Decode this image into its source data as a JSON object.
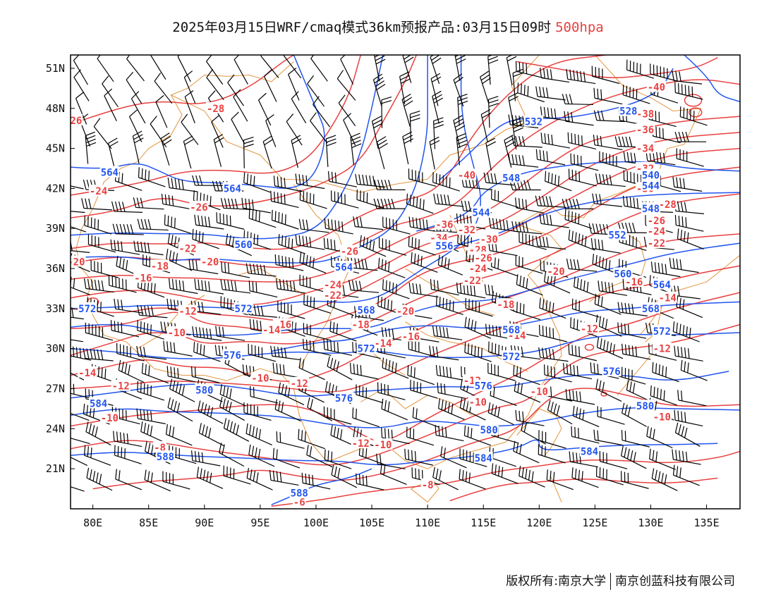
{
  "title": {
    "main": "2025年03月15日WRF/cmaq模式36km预报产品:03月15日09时",
    "level": "500hpa"
  },
  "axes": {
    "lon_ticks": [
      "80E",
      "85E",
      "90E",
      "95E",
      "100E",
      "105E",
      "110E",
      "115E",
      "120E",
      "125E",
      "130E",
      "135E"
    ],
    "lat_ticks": [
      "51N",
      "48N",
      "45N",
      "42N",
      "39N",
      "36N",
      "33N",
      "30N",
      "27N",
      "24N",
      "21N"
    ],
    "lon_range": [
      78,
      138
    ],
    "lat_range": [
      18,
      52
    ]
  },
  "colors": {
    "height_contours": "#2255ee",
    "temperature_contours": "#e84040",
    "borders": "#e08a2a",
    "wind_barbs": "#000000"
  },
  "height_labels": [
    {
      "text": "564",
      "lon": 81.5,
      "lat": 43.2
    },
    {
      "text": "564",
      "lon": 92.5,
      "lat": 42.0
    },
    {
      "text": "560",
      "lon": 93.5,
      "lat": 37.8
    },
    {
      "text": "564",
      "lon": 102.5,
      "lat": 36.1
    },
    {
      "text": "528",
      "lon": 128.0,
      "lat": 47.8
    },
    {
      "text": "532",
      "lon": 119.5,
      "lat": 47.0
    },
    {
      "text": "548",
      "lon": 117.5,
      "lat": 42.8
    },
    {
      "text": "544",
      "lon": 114.8,
      "lat": 40.2
    },
    {
      "text": "556",
      "lon": 111.5,
      "lat": 37.7
    },
    {
      "text": "552",
      "lon": 127.0,
      "lat": 38.5
    },
    {
      "text": "560",
      "lon": 127.5,
      "lat": 35.6
    },
    {
      "text": "564",
      "lon": 131.0,
      "lat": 34.8
    },
    {
      "text": "568",
      "lon": 130.0,
      "lat": 33.0
    },
    {
      "text": "568",
      "lon": 104.5,
      "lat": 32.9
    },
    {
      "text": "572",
      "lon": 79.5,
      "lat": 33.0
    },
    {
      "text": "572",
      "lon": 93.5,
      "lat": 33.0
    },
    {
      "text": "572",
      "lon": 104.5,
      "lat": 30.0
    },
    {
      "text": "572",
      "lon": 117.5,
      "lat": 29.4
    },
    {
      "text": "572",
      "lon": 131.0,
      "lat": 31.3
    },
    {
      "text": "568",
      "lon": 117.5,
      "lat": 31.4
    },
    {
      "text": "576",
      "lon": 92.5,
      "lat": 29.5
    },
    {
      "text": "576",
      "lon": 102.5,
      "lat": 26.3
    },
    {
      "text": "576",
      "lon": 115.0,
      "lat": 27.2
    },
    {
      "text": "576",
      "lon": 126.5,
      "lat": 28.3
    },
    {
      "text": "580",
      "lon": 90.0,
      "lat": 26.9
    },
    {
      "text": "580",
      "lon": 129.5,
      "lat": 25.7
    },
    {
      "text": "580",
      "lon": 115.5,
      "lat": 23.9
    },
    {
      "text": "584",
      "lon": 80.5,
      "lat": 25.9
    },
    {
      "text": "584",
      "lon": 115.0,
      "lat": 21.8
    },
    {
      "text": "584",
      "lon": 124.5,
      "lat": 22.3
    },
    {
      "text": "588",
      "lon": 86.5,
      "lat": 21.9
    },
    {
      "text": "588",
      "lon": 98.5,
      "lat": 19.2
    },
    {
      "text": "540",
      "lon": 130.0,
      "lat": 43.0
    },
    {
      "text": "544",
      "lon": 130.0,
      "lat": 42.2
    },
    {
      "text": "548",
      "lon": 130.0,
      "lat": 40.5
    }
  ],
  "temperature_labels": [
    {
      "text": "26",
      "lon": 78.5,
      "lat": 47.1
    },
    {
      "text": "-28",
      "lon": 91.0,
      "lat": 48.0
    },
    {
      "text": "-24",
      "lon": 80.5,
      "lat": 41.8
    },
    {
      "text": "-26",
      "lon": 89.5,
      "lat": 40.6
    },
    {
      "text": "-22",
      "lon": 88.5,
      "lat": 37.5
    },
    {
      "text": "-20",
      "lon": 78.5,
      "lat": 36.5
    },
    {
      "text": "-20",
      "lon": 90.5,
      "lat": 36.5
    },
    {
      "text": "-18",
      "lon": 86.0,
      "lat": 36.2
    },
    {
      "text": "-16",
      "lon": 84.5,
      "lat": 35.3
    },
    {
      "text": "-40",
      "lon": 130.5,
      "lat": 49.6
    },
    {
      "text": "-38",
      "lon": 129.5,
      "lat": 47.6
    },
    {
      "text": "-36",
      "lon": 129.5,
      "lat": 46.4
    },
    {
      "text": "-34",
      "lon": 129.5,
      "lat": 45.0
    },
    {
      "text": "-40",
      "lon": 113.5,
      "lat": 43.0
    },
    {
      "text": "-32",
      "lon": 129.5,
      "lat": 43.5
    },
    {
      "text": "-30",
      "lon": 129.5,
      "lat": 42.0
    },
    {
      "text": "-28",
      "lon": 131.5,
      "lat": 40.8
    },
    {
      "text": "-26",
      "lon": 130.5,
      "lat": 39.6
    },
    {
      "text": "-24",
      "lon": 130.5,
      "lat": 38.8
    },
    {
      "text": "-22",
      "lon": 130.5,
      "lat": 37.9
    },
    {
      "text": "-36",
      "lon": 111.5,
      "lat": 39.3
    },
    {
      "text": "-32",
      "lon": 113.5,
      "lat": 38.9
    },
    {
      "text": "-34",
      "lon": 111.0,
      "lat": 38.3
    },
    {
      "text": "-30",
      "lon": 115.5,
      "lat": 38.2
    },
    {
      "text": "-28",
      "lon": 114.5,
      "lat": 37.4
    },
    {
      "text": "-26",
      "lon": 115.0,
      "lat": 36.8
    },
    {
      "text": "-24",
      "lon": 114.5,
      "lat": 36.0
    },
    {
      "text": "-22",
      "lon": 114.0,
      "lat": 35.1
    },
    {
      "text": "-20",
      "lon": 121.5,
      "lat": 35.8
    },
    {
      "text": "-16",
      "lon": 128.5,
      "lat": 35.0
    },
    {
      "text": "-14",
      "lon": 131.5,
      "lat": 33.8
    },
    {
      "text": "-26",
      "lon": 103.0,
      "lat": 37.3
    },
    {
      "text": "-24",
      "lon": 101.5,
      "lat": 34.8
    },
    {
      "text": "-22",
      "lon": 101.5,
      "lat": 34.0
    },
    {
      "text": "-20",
      "lon": 108.0,
      "lat": 32.8
    },
    {
      "text": "-18",
      "lon": 117.0,
      "lat": 33.3
    },
    {
      "text": "-18",
      "lon": 104.0,
      "lat": 31.8
    },
    {
      "text": "-16",
      "lon": 97.0,
      "lat": 31.8
    },
    {
      "text": "-16",
      "lon": 108.5,
      "lat": 30.9
    },
    {
      "text": "-14",
      "lon": 96.0,
      "lat": 31.4
    },
    {
      "text": "-14",
      "lon": 106.0,
      "lat": 30.4
    },
    {
      "text": "-14",
      "lon": 118.0,
      "lat": 31.0
    },
    {
      "text": "-12",
      "lon": 88.5,
      "lat": 32.8
    },
    {
      "text": "-12",
      "lon": 124.5,
      "lat": 31.5
    },
    {
      "text": "-12",
      "lon": 131.0,
      "lat": 30.0
    },
    {
      "text": "-10",
      "lon": 87.5,
      "lat": 31.2
    },
    {
      "text": "-14",
      "lon": 79.5,
      "lat": 28.2
    },
    {
      "text": "-12",
      "lon": 82.5,
      "lat": 27.2
    },
    {
      "text": "-10",
      "lon": 95.0,
      "lat": 27.8
    },
    {
      "text": "-12",
      "lon": 98.5,
      "lat": 27.4
    },
    {
      "text": "-12",
      "lon": 114.0,
      "lat": 27.6
    },
    {
      "text": "-10",
      "lon": 120.0,
      "lat": 26.8
    },
    {
      "text": "-10",
      "lon": 114.5,
      "lat": 26.0
    },
    {
      "text": "-10",
      "lon": 81.5,
      "lat": 24.8
    },
    {
      "text": "-10",
      "lon": 131.0,
      "lat": 24.9
    },
    {
      "text": "-12",
      "lon": 104.0,
      "lat": 22.9
    },
    {
      "text": "-10",
      "lon": 106.0,
      "lat": 22.8
    },
    {
      "text": "-8",
      "lon": 86.0,
      "lat": 22.6
    },
    {
      "text": "-8",
      "lon": 110.0,
      "lat": 19.8
    },
    {
      "text": "-6",
      "lon": 98.5,
      "lat": 18.5
    }
  ],
  "footer": {
    "rights": "版权所有:南京大学",
    "company": "南京创蓝科技有限公司"
  }
}
